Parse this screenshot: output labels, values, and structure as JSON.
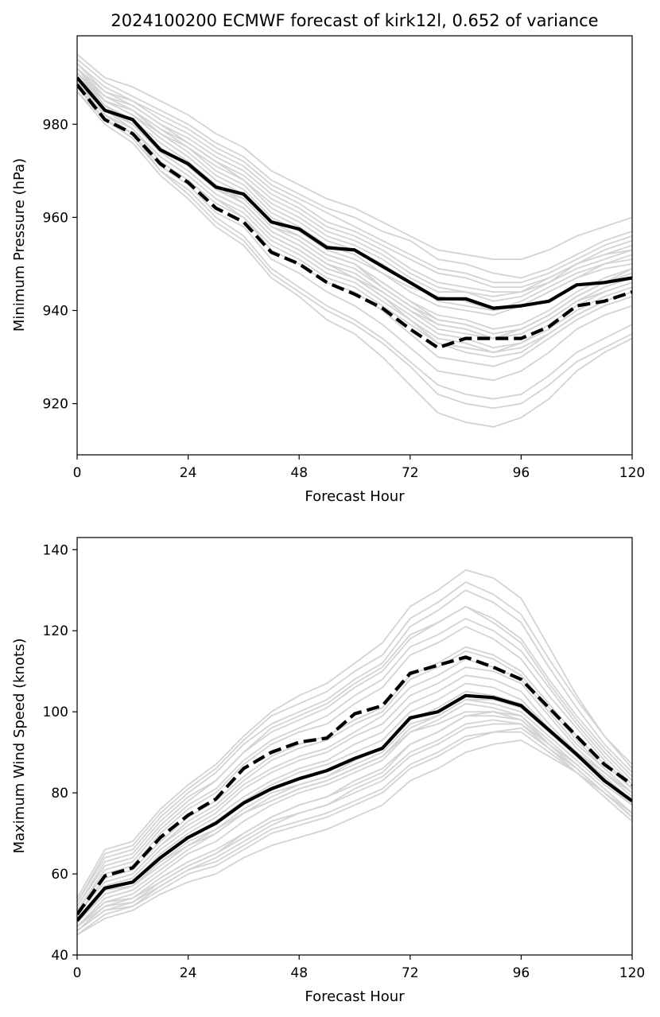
{
  "chart_data": [
    {
      "type": "line",
      "title": "2024100200 ECMWF forecast of kirk12l, 0.652 of variance",
      "xlabel": "Forecast Hour",
      "ylabel": "Minimum Pressure (hPa)",
      "xlim": [
        0,
        120
      ],
      "ylim": [
        909,
        999
      ],
      "xticks": [
        0,
        24,
        48,
        72,
        96,
        120
      ],
      "yticks": [
        920,
        940,
        960,
        980
      ],
      "grid": false,
      "x": [
        0,
        6,
        12,
        18,
        24,
        30,
        36,
        42,
        48,
        54,
        60,
        66,
        72,
        78,
        84,
        90,
        96,
        102,
        108,
        114,
        120
      ],
      "series": [
        {
          "style": "solid",
          "color": "#000000",
          "values": [
            990,
            983,
            981,
            974.5,
            971.5,
            966.5,
            965,
            959,
            957.5,
            953.5,
            953,
            949.5,
            946,
            942.5,
            942.5,
            940.5,
            941,
            942,
            945.5,
            946,
            947
          ]
        },
        {
          "style": "dashed",
          "color": "#000000",
          "values": [
            988.5,
            981,
            978,
            971.5,
            967.5,
            962,
            959,
            952.5,
            950,
            946,
            943.5,
            940.5,
            936,
            932,
            934,
            934,
            934,
            936.5,
            941,
            942,
            944
          ]
        }
      ],
      "ensemble_color": "#d3d3d3",
      "ensemble": [
        [
          991,
          985,
          982,
          978,
          975,
          970,
          967,
          961,
          958,
          954,
          952,
          948,
          945,
          943,
          942,
          940,
          942,
          945,
          948,
          950,
          952
        ],
        [
          993,
          987,
          984,
          980,
          976,
          972,
          968,
          963,
          960,
          956,
          954,
          951,
          947,
          944,
          944,
          942,
          943,
          946,
          950,
          953,
          955
        ],
        [
          989,
          982,
          979,
          972,
          968,
          963,
          960,
          953,
          950,
          946,
          944,
          940,
          935,
          930,
          929,
          928,
          930,
          934,
          938,
          941,
          943
        ],
        [
          990,
          983,
          980,
          975,
          971,
          966,
          964,
          958,
          956,
          952,
          950,
          945,
          941,
          937,
          936,
          934,
          936,
          939,
          943,
          946,
          948
        ],
        [
          992,
          986,
          983,
          978,
          974,
          969,
          966,
          960,
          957,
          953,
          951,
          948,
          944,
          941,
          940,
          939,
          941,
          944,
          947,
          949,
          950
        ],
        [
          988,
          981,
          978,
          970,
          966,
          960,
          956,
          949,
          945,
          941,
          938,
          934,
          929,
          924,
          922,
          921,
          922,
          926,
          931,
          934,
          937
        ],
        [
          994,
          989,
          986,
          983,
          980,
          976,
          973,
          968,
          965,
          962,
          960,
          957,
          955,
          951,
          950,
          948,
          947,
          949,
          952,
          955,
          957
        ],
        [
          990,
          984,
          981,
          976,
          972,
          967,
          963,
          957,
          954,
          950,
          947,
          943,
          938,
          933,
          931,
          930,
          931,
          935,
          939,
          942,
          944
        ],
        [
          991,
          985,
          982,
          977,
          973,
          968,
          965,
          959,
          956,
          952,
          950,
          946,
          942,
          939,
          938,
          936,
          937,
          940,
          944,
          947,
          949
        ],
        [
          989,
          983,
          979,
          973,
          969,
          964,
          961,
          955,
          952,
          948,
          946,
          942,
          938,
          934,
          933,
          931,
          933,
          937,
          941,
          944,
          946
        ],
        [
          992,
          987,
          985,
          981,
          978,
          974,
          971,
          966,
          963,
          959,
          957,
          954,
          951,
          948,
          947,
          945,
          945,
          947,
          950,
          952,
          954
        ],
        [
          987,
          980,
          976,
          969,
          964,
          958,
          954,
          947,
          943,
          938,
          935,
          930,
          924,
          918,
          916,
          915,
          917,
          921,
          927,
          931,
          934
        ],
        [
          990,
          984,
          980,
          974,
          970,
          965,
          962,
          956,
          953,
          949,
          947,
          944,
          940,
          936,
          935,
          934,
          935,
          938,
          942,
          945,
          947
        ],
        [
          993,
          988,
          985,
          982,
          979,
          975,
          972,
          967,
          964,
          961,
          958,
          955,
          952,
          949,
          948,
          946,
          946,
          948,
          951,
          954,
          956
        ],
        [
          991,
          984,
          981,
          976,
          972,
          967,
          964,
          958,
          955,
          951,
          949,
          945,
          941,
          938,
          937,
          935,
          936,
          939,
          943,
          946,
          948
        ],
        [
          989,
          982,
          978,
          971,
          967,
          961,
          958,
          951,
          948,
          944,
          941,
          937,
          932,
          927,
          926,
          925,
          927,
          931,
          936,
          939,
          941
        ],
        [
          990,
          985,
          983,
          979,
          976,
          972,
          969,
          964,
          961,
          957,
          955,
          952,
          948,
          945,
          944,
          943,
          944,
          947,
          950,
          952,
          953
        ],
        [
          992,
          985,
          982,
          977,
          973,
          968,
          965,
          959,
          956,
          952,
          950,
          946,
          942,
          938,
          937,
          935,
          936,
          939,
          943,
          946,
          949
        ],
        [
          988,
          982,
          979,
          973,
          969,
          964,
          960,
          954,
          951,
          947,
          945,
          941,
          937,
          933,
          932,
          931,
          932,
          935,
          939,
          942,
          944
        ],
        [
          995,
          990,
          988,
          985,
          982,
          978,
          975,
          970,
          967,
          964,
          962,
          959,
          956,
          953,
          952,
          951,
          951,
          953,
          956,
          958,
          960
        ],
        [
          990,
          983,
          980,
          974,
          970,
          965,
          962,
          956,
          953,
          949,
          947,
          943,
          939,
          935,
          934,
          932,
          933,
          936,
          940,
          943,
          945
        ],
        [
          991,
          986,
          983,
          979,
          975,
          971,
          968,
          962,
          959,
          955,
          953,
          950,
          946,
          942,
          941,
          940,
          941,
          944,
          947,
          950,
          951
        ],
        [
          987,
          981,
          977,
          970,
          965,
          959,
          955,
          948,
          944,
          940,
          937,
          933,
          928,
          922,
          920,
          919,
          920,
          924,
          929,
          932,
          935
        ],
        [
          992,
          986,
          984,
          980,
          977,
          973,
          970,
          965,
          962,
          958,
          956,
          953,
          949,
          946,
          945,
          944,
          944,
          946,
          949,
          951,
          953
        ],
        [
          990,
          984,
          981,
          975,
          971,
          966,
          963,
          957,
          954,
          950,
          948,
          944,
          940,
          937,
          936,
          934,
          935,
          938,
          942,
          944,
          946
        ]
      ]
    },
    {
      "type": "line",
      "title": "",
      "xlabel": "Forecast Hour",
      "ylabel": "Maximum Wind Speed (knots)",
      "xlim": [
        0,
        120
      ],
      "ylim": [
        40,
        143
      ],
      "xticks": [
        0,
        24,
        48,
        72,
        96,
        120
      ],
      "yticks": [
        40,
        60,
        80,
        100,
        120,
        140
      ],
      "grid": false,
      "x": [
        0,
        6,
        12,
        18,
        24,
        30,
        36,
        42,
        48,
        54,
        60,
        66,
        72,
        78,
        84,
        90,
        96,
        102,
        108,
        114,
        120
      ],
      "series": [
        {
          "style": "solid",
          "color": "#000000",
          "values": [
            48.5,
            56.5,
            58,
            64,
            69,
            72.5,
            77.5,
            81,
            83.5,
            85.5,
            88.5,
            91,
            98.5,
            100,
            104,
            103.5,
            101.5,
            95.5,
            89.5,
            83,
            78
          ]
        },
        {
          "style": "dashed",
          "color": "#000000",
          "values": [
            50,
            59.5,
            61.5,
            69,
            74.5,
            78.5,
            86,
            90,
            92.5,
            93.5,
            99.5,
            101.5,
            109.5,
            111.5,
            113.5,
            111,
            108,
            101,
            94,
            87,
            82
          ]
        }
      ],
      "ensemble_color": "#d3d3d3",
      "ensemble": [
        [
          48,
          55,
          57,
          63,
          68,
          71,
          76,
          80,
          82,
          84,
          87,
          90,
          97,
          99,
          103,
          102,
          100,
          94,
          88,
          82,
          77
        ],
        [
          46,
          52,
          54,
          58,
          62,
          65,
          70,
          74,
          77,
          79,
          82,
          85,
          92,
          95,
          99,
          100,
          99,
          93,
          87,
          81,
          75
        ],
        [
          50,
          58,
          60,
          67,
          73,
          77,
          83,
          88,
          91,
          93,
          97,
          100,
          108,
          111,
          115,
          113,
          109,
          101,
          93,
          86,
          80
        ],
        [
          47,
          53,
          55,
          60,
          65,
          68,
          73,
          77,
          80,
          82,
          85,
          88,
          95,
          98,
          102,
          101,
          99,
          92,
          86,
          80,
          74
        ],
        [
          52,
          62,
          64,
          72,
          78,
          83,
          90,
          95,
          98,
          101,
          106,
          110,
          118,
          122,
          126,
          122,
          117,
          107,
          98,
          90,
          83
        ],
        [
          45,
          50,
          52,
          56,
          60,
          62,
          66,
          70,
          72,
          74,
          77,
          80,
          86,
          89,
          93,
          95,
          96,
          91,
          86,
          80,
          74
        ],
        [
          49,
          57,
          58,
          65,
          70,
          74,
          79,
          83,
          86,
          88,
          92,
          95,
          102,
          105,
          109,
          108,
          105,
          97,
          90,
          84,
          78
        ],
        [
          51,
          60,
          62,
          70,
          76,
          80,
          87,
          92,
          95,
          97,
          102,
          106,
          114,
          117,
          121,
          118,
          113,
          104,
          96,
          88,
          81
        ],
        [
          47,
          54,
          56,
          61,
          66,
          70,
          75,
          78,
          81,
          83,
          86,
          89,
          96,
          99,
          103,
          103,
          101,
          95,
          89,
          83,
          77
        ],
        [
          53,
          64,
          66,
          74,
          80,
          85,
          92,
          97,
          100,
          103,
          108,
          112,
          121,
          125,
          130,
          127,
          122,
          111,
          101,
          92,
          85
        ],
        [
          48,
          56,
          58,
          64,
          69,
          73,
          78,
          82,
          85,
          87,
          90,
          93,
          100,
          103,
          107,
          106,
          103,
          96,
          89,
          83,
          77
        ],
        [
          46,
          51,
          53,
          57,
          61,
          64,
          68,
          72,
          75,
          77,
          80,
          83,
          89,
          92,
          96,
          97,
          97,
          92,
          87,
          81,
          75
        ],
        [
          50,
          59,
          61,
          68,
          74,
          78,
          84,
          89,
          92,
          94,
          98,
          101,
          109,
          112,
          116,
          114,
          110,
          102,
          94,
          87,
          81
        ],
        [
          49,
          56,
          57,
          63,
          67,
          71,
          75,
          79,
          82,
          84,
          88,
          91,
          98,
          101,
          105,
          104,
          102,
          96,
          90,
          85,
          80
        ],
        [
          54,
          66,
          68,
          76,
          82,
          87,
          94,
          100,
          104,
          107,
          112,
          117,
          126,
          130,
          135,
          133,
          128,
          116,
          104,
          94,
          86
        ],
        [
          47,
          53,
          54,
          59,
          63,
          66,
          70,
          74,
          77,
          79,
          83,
          86,
          92,
          95,
          99,
          99,
          98,
          92,
          86,
          80,
          75
        ],
        [
          51,
          61,
          63,
          71,
          77,
          81,
          88,
          93,
          96,
          99,
          104,
          108,
          116,
          119,
          123,
          120,
          115,
          106,
          97,
          89,
          82
        ],
        [
          48,
          55,
          57,
          62,
          67,
          70,
          75,
          78,
          81,
          83,
          86,
          89,
          95,
          97,
          100,
          100,
          98,
          92,
          86,
          80,
          74
        ],
        [
          45,
          49,
          51,
          55,
          58,
          60,
          64,
          67,
          69,
          71,
          74,
          77,
          83,
          86,
          90,
          92,
          93,
          89,
          85,
          80,
          75
        ],
        [
          52,
          63,
          65,
          73,
          79,
          83,
          90,
          96,
          99,
          102,
          107,
          111,
          119,
          122,
          126,
          123,
          118,
          108,
          99,
          91,
          84
        ],
        [
          49,
          57,
          59,
          66,
          71,
          75,
          81,
          85,
          88,
          90,
          94,
          97,
          104,
          107,
          111,
          110,
          107,
          99,
          91,
          85,
          79
        ],
        [
          47,
          52,
          53,
          58,
          62,
          65,
          69,
          73,
          75,
          77,
          81,
          84,
          90,
          93,
          97,
          98,
          97,
          91,
          85,
          79,
          73
        ],
        [
          50,
          58,
          60,
          67,
          72,
          76,
          82,
          86,
          89,
          91,
          95,
          99,
          106,
          109,
          113,
          111,
          108,
          100,
          92,
          86,
          80
        ],
        [
          46,
          51,
          52,
          57,
          61,
          63,
          67,
          71,
          73,
          75,
          78,
          81,
          87,
          90,
          94,
          95,
          95,
          90,
          85,
          79,
          73
        ],
        [
          53,
          65,
          67,
          75,
          81,
          86,
          93,
          99,
          102,
          105,
          110,
          114,
          123,
          127,
          132,
          129,
          124,
          113,
          103,
          94,
          87
        ]
      ]
    }
  ]
}
